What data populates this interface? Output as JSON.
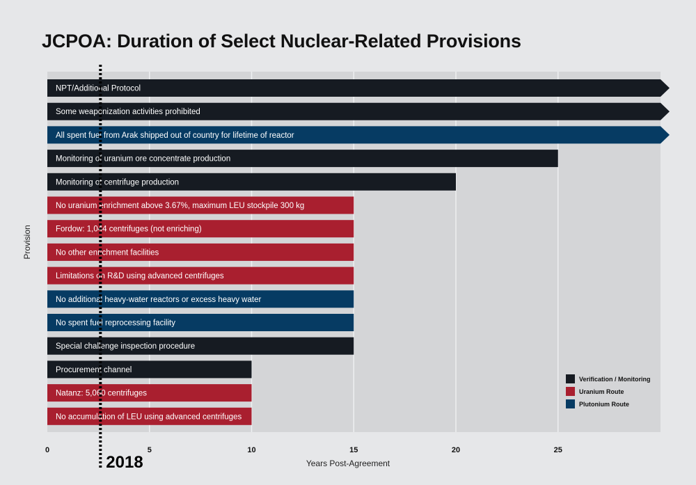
{
  "chart_data": {
    "type": "bar",
    "orientation": "horizontal",
    "title": "JCPOA: Duration of Select Nuclear-Related Provisions",
    "xlabel": "Years Post-Agreement",
    "ylabel": "Provision",
    "xlim": [
      0,
      30
    ],
    "xticks": [
      0,
      5,
      10,
      15,
      20,
      25
    ],
    "grid": true,
    "marker": {
      "value": 2.6,
      "label": "2018"
    },
    "colors": {
      "Verification / Monitoring": "#161b22",
      "Uranium Route": "#a91f2f",
      "Plutonium Route": "#063b63"
    },
    "legend": {
      "placement": "bottom-right",
      "entries": [
        "Verification / Monitoring",
        "Uranium Route",
        "Plutonium Route"
      ]
    },
    "bars": [
      {
        "label": "NPT/Additional Protocol",
        "value": 30,
        "category": "Verification / Monitoring",
        "indefinite": true
      },
      {
        "label": "Some weaponization activities prohibited",
        "value": 30,
        "category": "Verification / Monitoring",
        "indefinite": true
      },
      {
        "label": "All spent fuel from Arak shipped out of country for lifetime of reactor",
        "value": 30,
        "category": "Plutonium Route",
        "indefinite": true
      },
      {
        "label": "Monitoring of uranium ore concentrate production",
        "value": 25,
        "category": "Verification / Monitoring",
        "indefinite": false
      },
      {
        "label": "Monitoring of centrifuge production",
        "value": 20,
        "category": "Verification / Monitoring",
        "indefinite": false
      },
      {
        "label": "No uranium enrichment above 3.67%, maximum LEU stockpile 300 kg",
        "value": 15,
        "category": "Uranium Route",
        "indefinite": false
      },
      {
        "label": "Fordow: 1,044 centrifuges (not enriching)",
        "value": 15,
        "category": "Uranium Route",
        "indefinite": false
      },
      {
        "label": "No other enrichment facilities",
        "value": 15,
        "category": "Uranium Route",
        "indefinite": false
      },
      {
        "label": "Limitations on R&D using advanced centrifuges",
        "value": 15,
        "category": "Uranium Route",
        "indefinite": false
      },
      {
        "label": "No additional heavy-water reactors or excess heavy water",
        "value": 15,
        "category": "Plutonium Route",
        "indefinite": false
      },
      {
        "label": "No spent fuel reprocessing facility",
        "value": 15,
        "category": "Plutonium Route",
        "indefinite": false
      },
      {
        "label": "Special challenge inspection procedure",
        "value": 15,
        "category": "Verification / Monitoring",
        "indefinite": false
      },
      {
        "label": "Procurement channel",
        "value": 10,
        "category": "Verification / Monitoring",
        "indefinite": false
      },
      {
        "label": "Natanz: 5,060 centrifuges",
        "value": 10,
        "category": "Uranium Route",
        "indefinite": false
      },
      {
        "label": "No accumulation of LEU using advanced centrifuges",
        "value": 10,
        "category": "Uranium Route",
        "indefinite": false
      }
    ]
  }
}
